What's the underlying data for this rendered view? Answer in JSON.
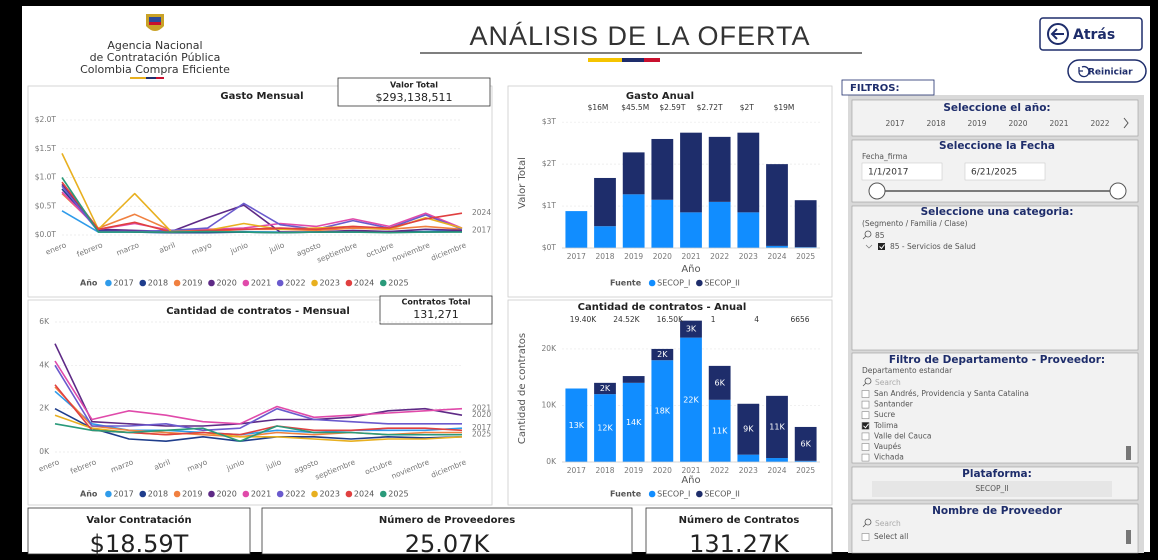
{
  "header": {
    "agency": [
      "Agencia Nacional",
      "de Contratación Pública",
      "Colombia Compra Eficiente"
    ],
    "title": "ANÁLISIS DE LA OFERTA",
    "back": "Atrás",
    "reset": "Reiniciar"
  },
  "cards": {
    "valor_total": {
      "label": "Valor Total",
      "value": "$293,138,511"
    },
    "contratos_total": {
      "label": "Contratos Total",
      "value": "131,271"
    }
  },
  "kpis": [
    {
      "label": "Valor Contratación",
      "value": "$18.59T"
    },
    {
      "label": "Número de Proveedores",
      "value": "25.07K"
    },
    {
      "label": "Número de Contratos",
      "value": "131.27K"
    }
  ],
  "filters": {
    "heading": "FILTROS:",
    "year": {
      "title": "Seleccione el año:",
      "options": [
        "2017",
        "2018",
        "2019",
        "2020",
        "2021",
        "2022"
      ]
    },
    "date": {
      "title": "Seleccione la Fecha",
      "field": "Fecha_firma",
      "start": "1/1/2017",
      "end": "6/21/2025"
    },
    "category": {
      "title": "Seleccione una categoria:",
      "hierarchy": "(Segmento / Familia / Clase)",
      "search": "85",
      "item": "85 - Servicios de Salud"
    },
    "department": {
      "title": "Filtro de Departamento - Proveedor:",
      "field": "Departamento estandar",
      "search": "Search",
      "items": [
        "San Andrés, Providencia y Santa Catalina",
        "Santander",
        "Sucre",
        "Tolima",
        "Valle del Cauca",
        "Vaupés",
        "Vichada"
      ],
      "checked": "Tolima"
    },
    "platform": {
      "title": "Plataforma:",
      "value": "SECOP_II"
    },
    "provider": {
      "title": "Nombre de Proveedor",
      "search": "Search",
      "items": [
        "Select all"
      ]
    }
  },
  "chart_data": [
    {
      "type": "line",
      "title": "Gasto Mensual",
      "categories": [
        "enero",
        "febrero",
        "marzo",
        "abril",
        "mayo",
        "junio",
        "julio",
        "agosto",
        "septiembre",
        "octubre",
        "noviembre",
        "diciembre"
      ],
      "legend_title": "Año",
      "ylim": [
        0,
        2
      ],
      "yticks": [
        {
          "value": 0,
          "label": "$0.0T"
        },
        {
          "value": 0.5,
          "label": "$0.5T"
        },
        {
          "value": 1,
          "label": "$1.0T"
        },
        {
          "value": 1.5,
          "label": "$1.5T"
        },
        {
          "value": 2,
          "label": "$2.0T"
        }
      ],
      "grid": true,
      "series": [
        {
          "name": "2017",
          "color": "#2f9bea",
          "end_label": true,
          "values": [
            0.42,
            0.05,
            0.05,
            0.04,
            0.05,
            0.06,
            0.05,
            0.05,
            0.06,
            0.05,
            0.06,
            0.08
          ]
        },
        {
          "name": "2018",
          "color": "#1f3d8c",
          "values": [
            0.8,
            0.08,
            0.05,
            0.04,
            0.04,
            0.05,
            0.04,
            0.05,
            0.05,
            0.06,
            0.05,
            0.06
          ]
        },
        {
          "name": "2019",
          "color": "#f08040",
          "values": [
            0.72,
            0.12,
            0.36,
            0.08,
            0.06,
            0.1,
            0.1,
            0.08,
            0.12,
            0.1,
            0.15,
            0.1
          ]
        },
        {
          "name": "2020",
          "color": "#5e2a86",
          "values": [
            0.88,
            0.1,
            0.08,
            0.06,
            0.3,
            0.52,
            0.05,
            0.05,
            0.08,
            0.06,
            0.1,
            0.08
          ]
        },
        {
          "name": "2021",
          "color": "#e04aaa",
          "values": [
            0.75,
            0.1,
            0.2,
            0.08,
            0.1,
            0.12,
            0.2,
            0.15,
            0.28,
            0.15,
            0.38,
            0.12
          ]
        },
        {
          "name": "2022",
          "color": "#6a5acd",
          "values": [
            0.85,
            0.06,
            0.06,
            0.08,
            0.12,
            0.55,
            0.18,
            0.1,
            0.25,
            0.12,
            0.35,
            0.1
          ]
        },
        {
          "name": "2023",
          "color": "#e8b020",
          "values": [
            1.42,
            0.1,
            0.72,
            0.06,
            0.08,
            0.2,
            0.1,
            0.12,
            0.15,
            0.1,
            0.3,
            0.12
          ]
        },
        {
          "name": "2024",
          "color": "#e04040",
          "end_label": true,
          "values": [
            0.92,
            0.1,
            0.22,
            0.05,
            0.08,
            0.1,
            0.12,
            0.1,
            0.15,
            0.12,
            0.28,
            0.38
          ]
        },
        {
          "name": "2025",
          "color": "#2a9a7a",
          "values": [
            1.0,
            0.05,
            0.05,
            0.05,
            0.06,
            0.05,
            0.04,
            0.05,
            0.05,
            0.04,
            0.05,
            0.05
          ]
        }
      ]
    },
    {
      "type": "stacked_bar",
      "title": "Gasto Anual",
      "categories": [
        "2017",
        "2018",
        "2019",
        "2020",
        "2021",
        "2022",
        "2023",
        "2024",
        "2025"
      ],
      "x_label": "Año",
      "y_label": "Valor Total",
      "legend_title": "Fuente",
      "annotations": [
        "$16M",
        "$45.5M",
        "$2.59T",
        "$2.72T",
        "$2T",
        "$19M"
      ],
      "ylim": [
        0,
        3.1
      ],
      "yticks": [
        {
          "value": 0,
          "label": "$0T"
        },
        {
          "value": 1,
          "label": "$1T"
        },
        {
          "value": 2,
          "label": "$2T"
        },
        {
          "value": 3,
          "label": "$3T"
        }
      ],
      "grid": true,
      "series": [
        {
          "name": "SECOP_I",
          "color": "#118dff",
          "values": [
            0.88,
            0.52,
            1.28,
            1.15,
            0.85,
            1.1,
            0.85,
            0.05,
            0.02
          ]
        },
        {
          "name": "SECOP_II",
          "color": "#1e2d6b",
          "values": [
            0,
            1.15,
            1.0,
            1.45,
            1.9,
            1.55,
            1.9,
            1.95,
            1.12
          ]
        }
      ]
    },
    {
      "type": "line",
      "title": "Cantidad de contratos - Mensual",
      "categories": [
        "enero",
        "febrero",
        "marzo",
        "abril",
        "mayo",
        "junio",
        "julio",
        "agosto",
        "septiembre",
        "octubre",
        "noviembre",
        "diciembre"
      ],
      "legend_title": "Año",
      "ylim": [
        0,
        6000
      ],
      "yticks": [
        {
          "value": 0,
          "label": "0K"
        },
        {
          "value": 2000,
          "label": "2K"
        },
        {
          "value": 4000,
          "label": "4K"
        },
        {
          "value": 6000,
          "label": "6K"
        }
      ],
      "grid": true,
      "series": [
        {
          "name": "2017",
          "color": "#2f9bea",
          "end_label": true,
          "values": [
            2800,
            1300,
            1000,
            1000,
            900,
            800,
            1000,
            900,
            1000,
            1000,
            1000,
            1100
          ]
        },
        {
          "name": "2018",
          "color": "#1f3d8c",
          "values": [
            2000,
            1100,
            600,
            500,
            700,
            500,
            700,
            700,
            600,
            700,
            650,
            700
          ]
        },
        {
          "name": "2019",
          "color": "#f08040",
          "values": [
            3000,
            1200,
            1000,
            900,
            800,
            700,
            900,
            800,
            900,
            800,
            900,
            900
          ]
        },
        {
          "name": "2020",
          "color": "#5e2a86",
          "end_label": true,
          "values": [
            5000,
            1400,
            1300,
            1200,
            1200,
            1300,
            1500,
            1500,
            1600,
            1900,
            2000,
            1700
          ]
        },
        {
          "name": "2021",
          "color": "#e04aaa",
          "end_label": true,
          "values": [
            4200,
            1500,
            1900,
            1700,
            1400,
            1300,
            2100,
            1600,
            1700,
            1800,
            1900,
            2000
          ]
        },
        {
          "name": "2022",
          "color": "#6a5acd",
          "values": [
            4000,
            1200,
            1200,
            1300,
            1000,
            1100,
            2000,
            1500,
            1400,
            1300,
            1300,
            1300
          ]
        },
        {
          "name": "2023",
          "color": "#e8b020",
          "values": [
            1700,
            1100,
            900,
            800,
            900,
            700,
            700,
            600,
            500,
            600,
            600,
            700
          ]
        },
        {
          "name": "2024",
          "color": "#e04040",
          "values": [
            3100,
            1000,
            900,
            800,
            900,
            800,
            1200,
            1000,
            1000,
            1100,
            1100,
            1000
          ]
        },
        {
          "name": "2025",
          "color": "#2a9a7a",
          "end_label": true,
          "values": [
            1300,
            1000,
            900,
            1000,
            1100,
            500,
            1200,
            900,
            900,
            800,
            800,
            800
          ]
        }
      ]
    },
    {
      "type": "stacked_bar",
      "title": "Cantidad de contratos - Anual",
      "categories": [
        "2017",
        "2018",
        "2019",
        "2020",
        "2021",
        "2022",
        "2023",
        "2024",
        "2025"
      ],
      "x_label": "Año",
      "y_label": "Cantidad de contratos",
      "legend_title": "Fuente",
      "annotations": [
        "19.40K",
        "24.52K",
        "16.50K",
        "1",
        "4",
        "6656"
      ],
      "ylim": [
        0,
        26000
      ],
      "yticks": [
        {
          "value": 0,
          "label": "0K"
        },
        {
          "value": 10000,
          "label": "10K"
        },
        {
          "value": 20000,
          "label": "20K"
        }
      ],
      "grid": true,
      "series": [
        {
          "name": "SECOP_I",
          "color": "#118dff",
          "values": [
            13000,
            12000,
            14000,
            18000,
            22000,
            11000,
            1300,
            700,
            200
          ],
          "value_labels": [
            "13K",
            "12K",
            "14K",
            "18K",
            "22K",
            "11K",
            null,
            null,
            null
          ]
        },
        {
          "name": "SECOP_II",
          "color": "#1e2d6b",
          "values": [
            0,
            2000,
            1200,
            2000,
            3000,
            6000,
            9000,
            11000,
            6000
          ],
          "value_labels": [
            null,
            "2K",
            null,
            "2K",
            "3K",
            "6K",
            "9K",
            "11K",
            "6K"
          ]
        }
      ]
    }
  ]
}
